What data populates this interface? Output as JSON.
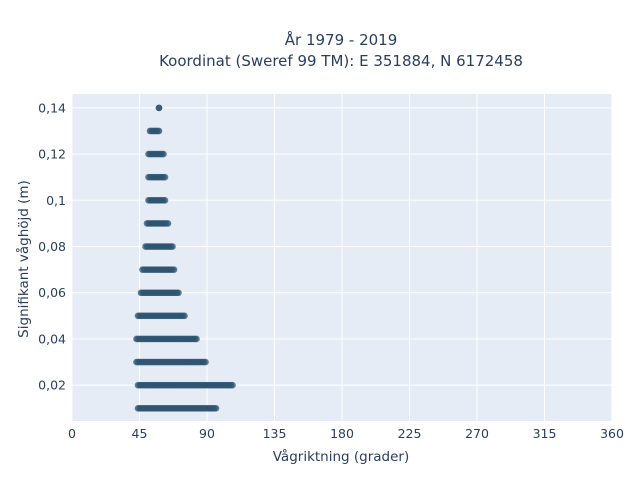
{
  "chart_data": {
    "type": "scatter",
    "title_line1": "År 1979 - 2019",
    "title_line2": "Koordinat (Sweref 99 TM): E 351884, N 6172458",
    "xlabel": "Vågriktning (grader)",
    "ylabel": "Signifikant våghöjd (m)",
    "xlim": [
      0,
      360
    ],
    "ylim": [
      0.0045,
      0.146
    ],
    "x_ticks": [
      0,
      45,
      90,
      135,
      180,
      225,
      270,
      315,
      360
    ],
    "y_ticks": [
      0.02,
      0.04,
      0.06,
      0.08,
      0.1,
      0.12,
      0.14
    ],
    "y_tick_labels": [
      "0,02",
      "0,04",
      "0,06",
      "0,08",
      "0,1",
      "0,12",
      "0,14"
    ],
    "grid": true,
    "marker_color": "#2e5470",
    "plot_bg": "#e5ecf6",
    "series": [
      {
        "points_by_height": [
          {
            "y": 0.01,
            "x_min": 44,
            "x_max": 96
          },
          {
            "y": 0.02,
            "x_min": 44,
            "x_max": 107
          },
          {
            "y": 0.03,
            "x_min": 43,
            "x_max": 89
          },
          {
            "y": 0.04,
            "x_min": 43,
            "x_max": 83
          },
          {
            "y": 0.05,
            "x_min": 44,
            "x_max": 75
          },
          {
            "y": 0.06,
            "x_min": 46,
            "x_max": 71
          },
          {
            "y": 0.07,
            "x_min": 47,
            "x_max": 68
          },
          {
            "y": 0.08,
            "x_min": 49,
            "x_max": 67
          },
          {
            "y": 0.09,
            "x_min": 50,
            "x_max": 64
          },
          {
            "y": 0.1,
            "x_min": 51,
            "x_max": 62
          },
          {
            "y": 0.11,
            "x_min": 51,
            "x_max": 62
          },
          {
            "y": 0.12,
            "x_min": 51,
            "x_max": 61
          },
          {
            "y": 0.13,
            "x_min": 52,
            "x_max": 58
          },
          {
            "y": 0.14,
            "x_min": 58,
            "x_max": 58
          }
        ]
      }
    ]
  }
}
